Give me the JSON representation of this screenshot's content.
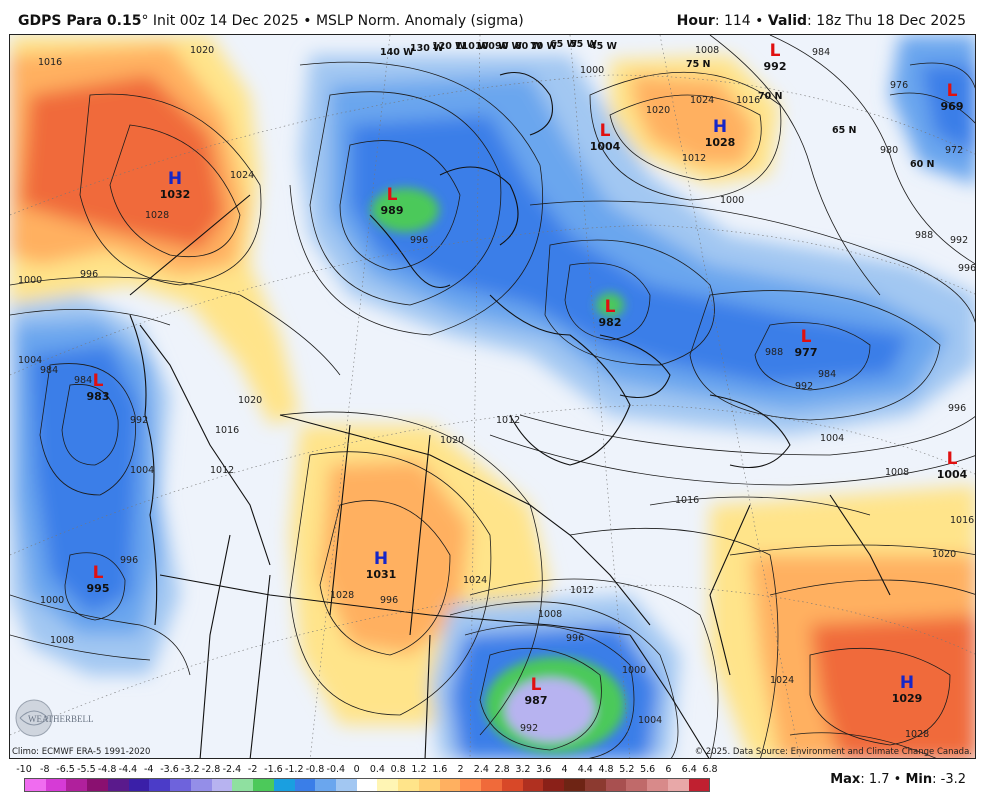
{
  "header": {
    "model": "GDPS Para 0.15",
    "degree": "°",
    "init": "Init 00z 14 Dec 2025",
    "field": "MSLP Norm. Anomaly (sigma)",
    "hour_label": "Hour",
    "hour_value": ": 114",
    "valid_label": "Valid",
    "valid_value": ": 18z Thu 18 Dec 2025"
  },
  "footer": {
    "climo": "Climo: ECMWF ERA-5 1991-2020",
    "copyright": "© 2025. Data Source: Environment and Climate Change Canada.",
    "max_label": "Max",
    "max_value": ": 1.7",
    "min_label": "Min",
    "min_value": ": -3.2",
    "logo_text": "WEATHERBELL"
  },
  "legend": {
    "ticks": [
      "-10",
      "-8",
      "-6.5",
      "-5.5",
      "-4.8",
      "-4.4",
      "-4",
      "-3.6",
      "-3.2",
      "-2.8",
      "-2.4",
      "-2",
      "-1.6",
      "-1.2",
      "-0.8",
      "-0.4",
      "0",
      "0.4",
      "0.8",
      "1.2",
      "1.6",
      "2",
      "2.4",
      "2.8",
      "3.2",
      "3.6",
      "4",
      "4.4",
      "4.8",
      "5.2",
      "5.6",
      "6",
      "6.4",
      "6.8"
    ],
    "colors": [
      "#f06cf0",
      "#d63bd6",
      "#b0209c",
      "#8a1070",
      "#5a1a8c",
      "#3a1fa8",
      "#4b3cc8",
      "#6e63dc",
      "#948ee8",
      "#b7b3f0",
      "#8fe0a0",
      "#4cc95a",
      "#1a9fe0",
      "#3a7ee8",
      "#6aa6ee",
      "#a2c7f2",
      "#ffffff",
      "#fff5b4",
      "#ffe48a",
      "#ffcf74",
      "#ffb060",
      "#ff9050",
      "#f06a3a",
      "#d84828",
      "#b03020",
      "#8a2018",
      "#6e2414",
      "#8c3a30",
      "#a85050",
      "#c06a6a",
      "#d88a8a",
      "#e8a8a8",
      "#c02030"
    ]
  },
  "map": {
    "centers": [
      {
        "type": "H",
        "value": "1032"
      },
      {
        "type": "L",
        "value": "989"
      },
      {
        "type": "L",
        "value": "1004"
      },
      {
        "type": "H",
        "value": "1028"
      },
      {
        "type": "L",
        "value": "992"
      },
      {
        "type": "L",
        "value": "969"
      },
      {
        "type": "L",
        "value": "983"
      },
      {
        "type": "L",
        "value": "995"
      },
      {
        "type": "L",
        "value": "982"
      },
      {
        "type": "L",
        "value": "977"
      },
      {
        "type": "L",
        "value": "1004"
      },
      {
        "type": "H",
        "value": "1031"
      },
      {
        "type": "L",
        "value": "987"
      },
      {
        "type": "H",
        "value": "1029"
      }
    ],
    "longitudes": [
      "140 W",
      "130 W",
      "120 W",
      "110 W",
      "100 W",
      "90 W",
      "80 W",
      "70 W",
      "65 W",
      "55 W",
      "45 W"
    ],
    "latitudes": [
      "75 N",
      "70 N",
      "65 N",
      "60 N"
    ],
    "isobar_labels": [
      "1020",
      "1016",
      "1024",
      "1028",
      "1000",
      "996",
      "1004",
      "1008",
      "984",
      "984",
      "1020",
      "1016",
      "1012",
      "1000",
      "996",
      "996",
      "1008",
      "1024",
      "1020",
      "1016",
      "1012",
      "1000",
      "984",
      "976",
      "972",
      "980",
      "988",
      "992",
      "996",
      "988",
      "992",
      "984",
      "996",
      "1004",
      "1008",
      "1012",
      "1016",
      "1020",
      "1024",
      "1028",
      "1012",
      "1008",
      "1004",
      "1000",
      "996",
      "992",
      "1020",
      "1016",
      "1024",
      "1028",
      "992",
      "996",
      "1000",
      "1004"
    ]
  }
}
